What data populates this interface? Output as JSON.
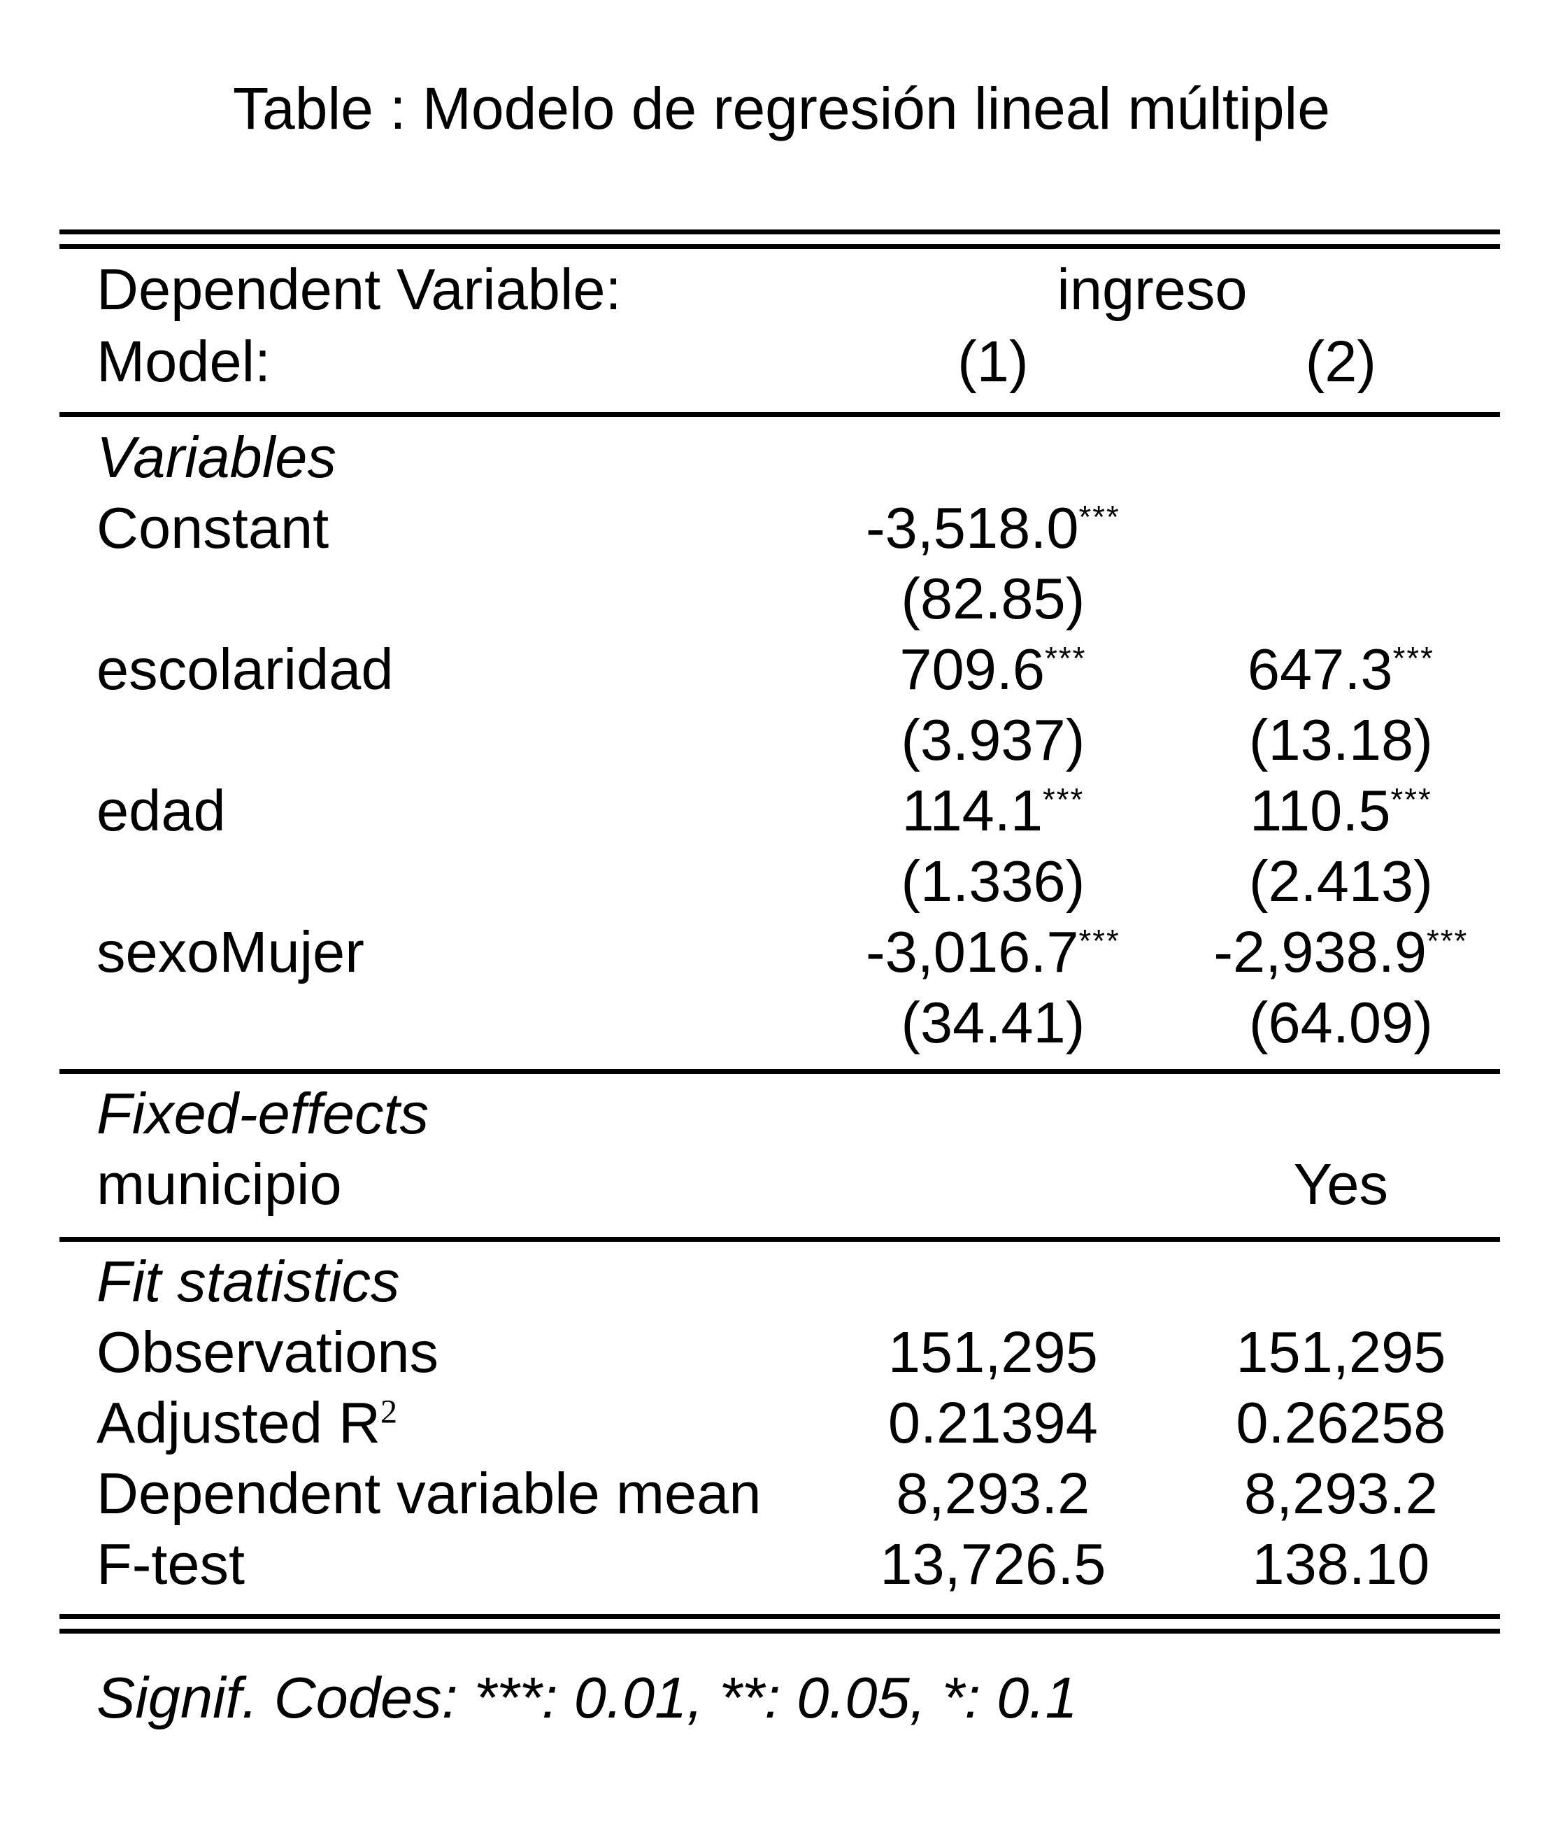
{
  "colors": {
    "background": "#ffffff",
    "text": "#000000",
    "rule": "#000000"
  },
  "title": "Table : Modelo de regresión lineal múltiple",
  "header": {
    "dependent_variable_label": "Dependent Variable:",
    "dependent_variable_value": "ingreso",
    "model_label": "Model:",
    "model_1": "(1)",
    "model_2": "(2)"
  },
  "variables": {
    "heading": "Variables",
    "constant": {
      "label": "Constant",
      "m1": "-3,518.0",
      "m1_stars": "***",
      "m2": "",
      "m2_stars": "",
      "se1": "(82.85)",
      "se2": ""
    },
    "escolaridad": {
      "label": "escolaridad",
      "m1": "709.6",
      "m1_stars": "***",
      "m2": "647.3",
      "m2_stars": "***",
      "se1": "(3.937)",
      "se2": "(13.18)"
    },
    "edad": {
      "label": "edad",
      "m1": "114.1",
      "m1_stars": "***",
      "m2": "110.5",
      "m2_stars": "***",
      "se1": "(1.336)",
      "se2": "(2.413)"
    },
    "sexo_mujer": {
      "label": "sexoMujer",
      "m1": "-3,016.7",
      "m1_stars": "***",
      "m2": "-2,938.9",
      "m2_stars": "***",
      "se1": "(34.41)",
      "se2": "(64.09)"
    }
  },
  "fixed_effects": {
    "heading": "Fixed-effects",
    "municipio": {
      "label": "municipio",
      "m1": "",
      "m2": "Yes"
    }
  },
  "fit_statistics": {
    "heading": "Fit statistics",
    "observations": {
      "label": "Observations",
      "m1": "151,295",
      "m2": "151,295"
    },
    "adjusted_r2": {
      "label": "Adjusted R",
      "label_sup": "2",
      "m1": "0.21394",
      "m2": "0.26258"
    },
    "dependent_variable_mean": {
      "label": "Dependent variable mean",
      "m1": "8,293.2",
      "m2": "8,293.2"
    },
    "f_test": {
      "label": "F-test",
      "m1": "13,726.5",
      "m2": "138.10"
    }
  },
  "signif_codes": "Signif. Codes: ***: 0.01, **: 0.05, *: 0.1"
}
